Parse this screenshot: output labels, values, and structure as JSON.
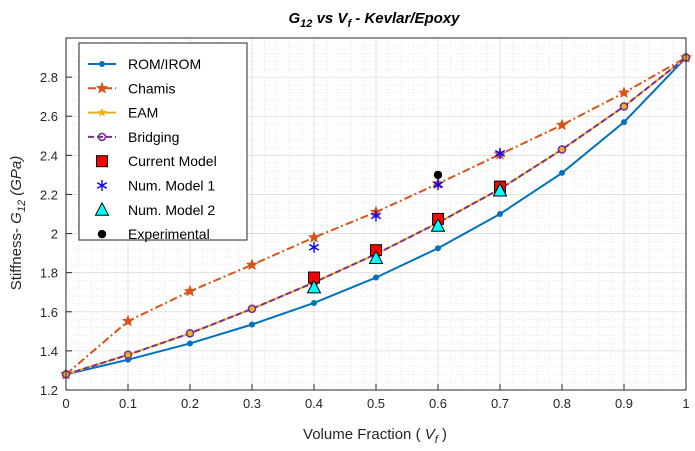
{
  "chart_data": {
    "type": "line",
    "title": {
      "main": "G",
      "sub": "12",
      "mid": " vs V",
      "sub2": "f",
      "rest": "  -  Kevlar/Epoxy"
    },
    "xlabel": {
      "pre": "Volume Fraction ( ",
      "var": "V",
      "sub": "f",
      "post": " )"
    },
    "ylabel": {
      "pre": "Stiffness-  ",
      "var": "G",
      "sub": "12",
      "post": " (GPa)"
    },
    "xlim": [
      0,
      1
    ],
    "ylim": [
      1.2,
      3.0
    ],
    "xticks": [
      0,
      0.1,
      0.2,
      0.3,
      0.4,
      0.5,
      0.6,
      0.7,
      0.8,
      0.9,
      1
    ],
    "xtick_labels": [
      "0",
      "0.1",
      "0.2",
      "0.3",
      "0.4",
      "0.5",
      "0.6",
      "0.7",
      "0.8",
      "0.9",
      "1"
    ],
    "yticks": [
      1.2,
      1.4,
      1.6,
      1.8,
      2.0,
      2.2,
      2.4,
      2.6,
      2.8
    ],
    "ytick_labels": [
      "1.2",
      "1.4",
      "1.6",
      "1.8",
      "2",
      "2.2",
      "2.4",
      "2.6",
      "2.8"
    ],
    "grid": true,
    "legend_position": "top-left",
    "series": [
      {
        "name": "ROM/IROM",
        "style": "line",
        "marker": "dot",
        "color": "#0072BD",
        "dash": "solid",
        "x": [
          0,
          0.1,
          0.2,
          0.3,
          0.4,
          0.5,
          0.6,
          0.7,
          0.8,
          0.9,
          1
        ],
        "y": [
          1.28,
          1.355,
          1.438,
          1.535,
          1.645,
          1.775,
          1.925,
          2.1,
          2.31,
          2.57,
          2.9
        ]
      },
      {
        "name": "Chamis",
        "style": "line",
        "marker": "star",
        "color": "#D95319",
        "dash": "dashdot",
        "x": [
          0,
          0.1,
          0.2,
          0.3,
          0.4,
          0.5,
          0.6,
          0.7,
          0.8,
          0.9,
          1
        ],
        "y": [
          1.28,
          1.552,
          1.705,
          1.84,
          1.98,
          2.11,
          2.255,
          2.405,
          2.555,
          2.72,
          2.9
        ]
      },
      {
        "name": "EAM",
        "style": "line",
        "marker": "star-small",
        "color": "#EDB120",
        "dash": "solid",
        "x": [
          0,
          0.1,
          0.2,
          0.3,
          0.4,
          0.5,
          0.6,
          0.7,
          0.8,
          0.9,
          1
        ],
        "y": [
          1.28,
          1.38,
          1.49,
          1.615,
          1.75,
          1.895,
          2.055,
          2.228,
          2.43,
          2.65,
          2.9
        ]
      },
      {
        "name": "Bridging",
        "style": "line",
        "marker": "circle-open",
        "color": "#7E2F8E",
        "dash": "dashed",
        "x": [
          0,
          0.1,
          0.2,
          0.3,
          0.4,
          0.5,
          0.6,
          0.7,
          0.8,
          0.9,
          1
        ],
        "y": [
          1.28,
          1.38,
          1.49,
          1.615,
          1.75,
          1.895,
          2.055,
          2.228,
          2.43,
          2.65,
          2.9
        ]
      },
      {
        "name": "Current Model",
        "style": "markers",
        "marker": "square",
        "color": "#FF0000",
        "x": [
          0.4,
          0.5,
          0.6,
          0.7
        ],
        "y": [
          1.775,
          1.915,
          2.075,
          2.24
        ]
      },
      {
        "name": "Num. Model 1",
        "style": "markers",
        "marker": "asterisk",
        "color": "#0000FF",
        "x": [
          0.4,
          0.5,
          0.6,
          0.7
        ],
        "y": [
          1.93,
          2.09,
          2.25,
          2.41
        ]
      },
      {
        "name": "Num. Model 2",
        "style": "markers",
        "marker": "triangle",
        "color": "#00FFFF",
        "x": [
          0.4,
          0.5,
          0.6,
          0.7
        ],
        "y": [
          1.725,
          1.875,
          2.04,
          2.22
        ]
      },
      {
        "name": "Experimental",
        "style": "markers",
        "marker": "dot-filled",
        "color": "#000000",
        "x": [
          0.6
        ],
        "y": [
          2.3
        ]
      }
    ]
  }
}
